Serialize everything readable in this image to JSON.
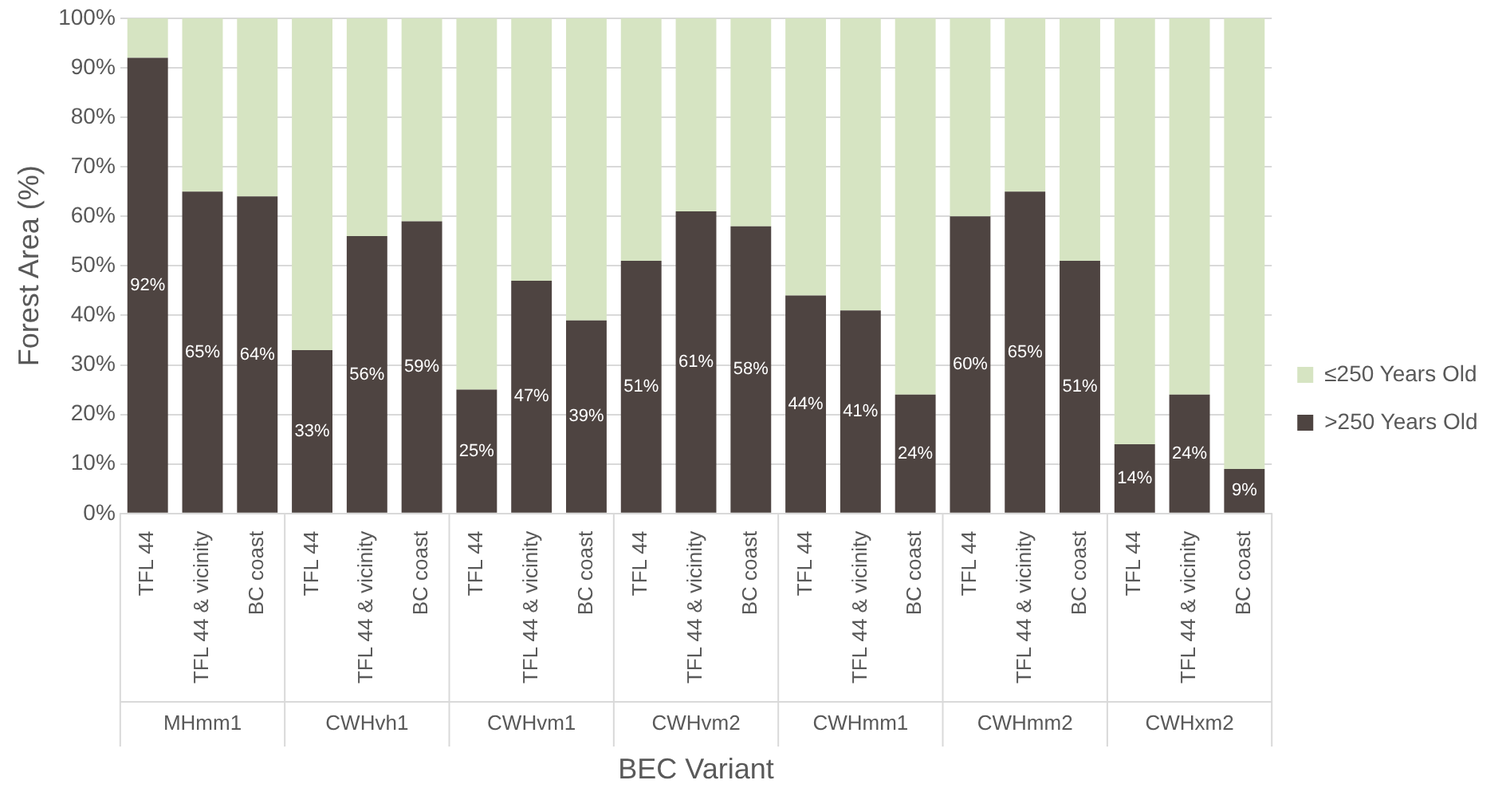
{
  "chart_data": {
    "type": "bar",
    "stacked": true,
    "ylabel": "Forest Area (%)",
    "xlabel": "BEC Variant",
    "categories": [
      "TFL 44",
      "TFL 44 & vicinity",
      "BC coast",
      "TFL 44",
      "TFL 44 & vicinity",
      "BC coast",
      "TFL 44",
      "TFL 44 & vicinity",
      "BC coast",
      "TFL 44",
      "TFL 44 & vicinity",
      "BC coast",
      "TFL 44",
      "TFL 44 & vicinity",
      "BC coast",
      "TFL 44",
      "TFL 44 & vicinity",
      "BC coast",
      "TFL 44",
      "TFL 44 & vicinity",
      "BC coast"
    ],
    "annotations": [
      "MHmm1",
      "CWHvh1",
      "CWHvm1",
      "CWHvm2",
      "CWHmm1",
      "CWHmm2",
      "CWHxm2"
    ],
    "series": [
      {
        "name": ">250 Years Old",
        "color": "#4e4441",
        "values": [
          92,
          65,
          64,
          33,
          56,
          59,
          25,
          47,
          39,
          51,
          61,
          58,
          44,
          41,
          24,
          60,
          65,
          51,
          14,
          24,
          9
        ],
        "value_labels": [
          "92%",
          "65%",
          "64%",
          "33%",
          "56%",
          "59%",
          "25%",
          "47%",
          "39%",
          "51%",
          "61%",
          "58%",
          "44%",
          "41%",
          "24%",
          "60%",
          "65%",
          "51%",
          "14%",
          "24%",
          "9%"
        ]
      },
      {
        "name": "≤250 Years Old",
        "color": "#d6e4c2",
        "values": [
          8,
          35,
          36,
          67,
          44,
          41,
          75,
          53,
          61,
          49,
          39,
          42,
          56,
          59,
          76,
          40,
          35,
          49,
          86,
          76,
          91
        ]
      }
    ],
    "ylim": [
      0,
      100
    ],
    "yticks": [
      {
        "value": 0,
        "label": "0%"
      },
      {
        "value": 10,
        "label": "10%"
      },
      {
        "value": 20,
        "label": "20%"
      },
      {
        "value": 30,
        "label": "30%"
      },
      {
        "value": 40,
        "label": "40%"
      },
      {
        "value": 50,
        "label": "50%"
      },
      {
        "value": 60,
        "label": "60%"
      },
      {
        "value": 70,
        "label": "70%"
      },
      {
        "value": 80,
        "label": "80%"
      },
      {
        "value": 90,
        "label": "90%"
      },
      {
        "value": 100,
        "label": "100%"
      }
    ],
    "grid": "y",
    "legend": "right"
  }
}
